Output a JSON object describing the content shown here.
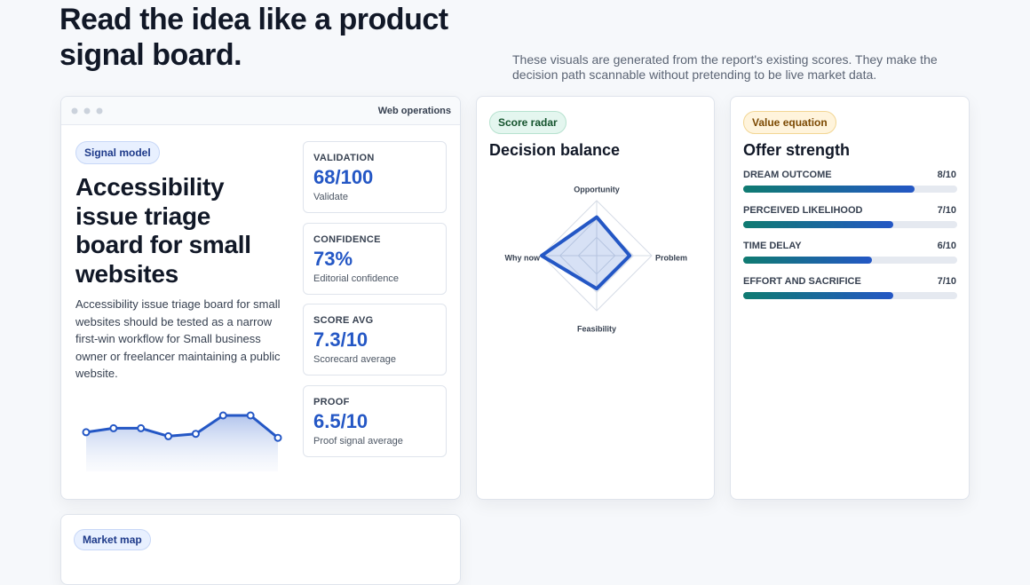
{
  "header": {
    "title": "Read the idea like a product signal board.",
    "description": "These visuals are generated from the report's existing scores. They make the decision path scannable without pretending to be live market data."
  },
  "signal_card": {
    "window_label": "Web operations",
    "pill": "Signal model",
    "title": "Accessibility issue triage board for small websites",
    "body": "Accessibility issue triage board for small websites should be tested as a narrow first-win workflow for Small business owner or freelancer maintaining a public website.",
    "sparkline": {
      "values": [
        4.9,
        5.4,
        5.4,
        4.4,
        4.7,
        7.0,
        7.0,
        4.2
      ],
      "ylim": [
        0,
        10
      ]
    },
    "metrics": [
      {
        "label": "VALIDATION",
        "value": "68/100",
        "caption": "Validate"
      },
      {
        "label": "CONFIDENCE",
        "value": "73%",
        "caption": "Editorial confidence"
      },
      {
        "label": "SCORE AVG",
        "value": "7.3/10",
        "caption": "Scorecard average"
      },
      {
        "label": "PROOF",
        "value": "6.5/10",
        "caption": "Proof signal average"
      }
    ]
  },
  "radar_card": {
    "pill": "Score radar",
    "title": "Decision balance",
    "axes": [
      "Opportunity",
      "Problem",
      "Feasibility",
      "Why now"
    ],
    "values": [
      7,
      6,
      6,
      10
    ],
    "max": 10
  },
  "offer_card": {
    "pill": "Value equation",
    "title": "Offer strength",
    "bars": [
      {
        "name": "DREAM OUTCOME",
        "label": "8/10",
        "value": 8,
        "max": 10
      },
      {
        "name": "PERCEIVED LIKELIHOOD",
        "label": "7/10",
        "value": 7,
        "max": 10
      },
      {
        "name": "TIME DELAY",
        "label": "6/10",
        "value": 6,
        "max": 10
      },
      {
        "name": "EFFORT AND SACRIFICE",
        "label": "7/10",
        "value": 7,
        "max": 10
      }
    ]
  },
  "market_card": {
    "pill": "Market map"
  }
}
